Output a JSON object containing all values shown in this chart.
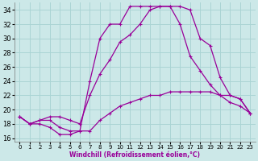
{
  "xlabel": "Windchill (Refroidissement éolien,°C)",
  "bg_color": "#cce8e8",
  "grid_color": "#aad4d4",
  "line_color": "#990099",
  "xlim": [
    -0.5,
    23.5
  ],
  "ylim": [
    15.5,
    35.0
  ],
  "xticks": [
    0,
    1,
    2,
    3,
    4,
    5,
    6,
    7,
    8,
    9,
    10,
    11,
    12,
    13,
    14,
    15,
    16,
    17,
    18,
    19,
    20,
    21,
    22,
    23
  ],
  "yticks": [
    16,
    18,
    20,
    22,
    24,
    26,
    28,
    30,
    32,
    34
  ],
  "series1_x": [
    0,
    1,
    2,
    3,
    4,
    5,
    6,
    7,
    8,
    9,
    10,
    11,
    12,
    13,
    14,
    15,
    16,
    17,
    18,
    19,
    20,
    21,
    22,
    23
  ],
  "series1_y": [
    19.0,
    18.0,
    18.0,
    17.5,
    16.5,
    16.5,
    17.0,
    17.0,
    18.5,
    19.5,
    20.5,
    21.0,
    21.5,
    22.0,
    22.0,
    22.5,
    22.5,
    22.5,
    22.5,
    22.5,
    22.0,
    21.0,
    20.5,
    19.5
  ],
  "series2_x": [
    0,
    1,
    2,
    3,
    4,
    5,
    6,
    7,
    8,
    9,
    10,
    11,
    12,
    13,
    14,
    15,
    16,
    17,
    18,
    19,
    20,
    21,
    22,
    23
  ],
  "series2_y": [
    19.0,
    18.0,
    18.5,
    18.5,
    17.5,
    17.0,
    17.0,
    24.0,
    30.0,
    32.0,
    32.0,
    34.5,
    34.5,
    34.5,
    34.5,
    34.5,
    32.0,
    27.5,
    25.5,
    23.5,
    22.0,
    22.0,
    21.5,
    19.5
  ],
  "series3_x": [
    0,
    1,
    2,
    3,
    4,
    5,
    6,
    7,
    8,
    9,
    10,
    11,
    12,
    13,
    14,
    15,
    16,
    17,
    18,
    19,
    20,
    21,
    22,
    23
  ],
  "series3_y": [
    19.0,
    18.0,
    18.5,
    19.0,
    19.0,
    18.5,
    18.0,
    22.0,
    25.0,
    27.0,
    29.5,
    30.5,
    32.0,
    34.0,
    34.5,
    34.5,
    34.5,
    34.0,
    30.0,
    29.0,
    24.5,
    22.0,
    21.5,
    19.5
  ]
}
